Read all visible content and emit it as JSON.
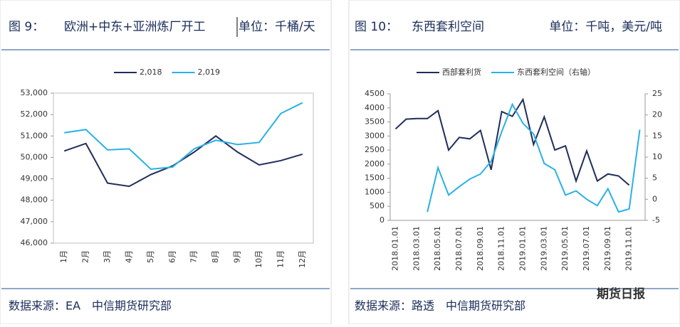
{
  "chart_data": [
    {
      "type": "line",
      "figure": "图 9：",
      "title": "欧洲+中东+亚洲炼厂开工",
      "unit": "单位：千桶/天",
      "source": "数据来源：EA　中信期货研究部",
      "categories": [
        "1月",
        "2月",
        "3月",
        "4月",
        "5月",
        "6月",
        "7月",
        "8月",
        "9月",
        "10月",
        "11月",
        "12月"
      ],
      "series": [
        {
          "name": "2,018",
          "color": "#1f2d5a",
          "values": [
            50300,
            50650,
            48800,
            48650,
            49200,
            49600,
            50250,
            51000,
            50250,
            49650,
            49850,
            50150
          ]
        },
        {
          "name": "2,019",
          "color": "#2ab0e6",
          "values": [
            51150,
            51300,
            50350,
            50400,
            49450,
            49550,
            50400,
            50800,
            50600,
            50700,
            52050,
            52550
          ]
        }
      ],
      "ylim": [
        46000,
        53000
      ],
      "yticks": [
        {
          "value": 46000,
          "label": "46,000"
        },
        {
          "value": 47000,
          "label": "47,000"
        },
        {
          "value": 48000,
          "label": "48,000"
        },
        {
          "value": 49000,
          "label": "49,000"
        },
        {
          "value": 50000,
          "label": "50,000"
        },
        {
          "value": 51000,
          "label": "51,000"
        },
        {
          "value": 52000,
          "label": "52,000"
        },
        {
          "value": 53000,
          "label": "53,000"
        }
      ],
      "legend": "top"
    },
    {
      "type": "line",
      "figure": "图 10：",
      "title": "东西套利空间",
      "unit": "单位：千吨，美元/吨",
      "source": "数据来源：路透　中信期货研究部",
      "categories": [
        "2018.01.01",
        null,
        "2018.03.01",
        null,
        "2018.05.01",
        null,
        "2018.07.01",
        null,
        "2018.09.01",
        null,
        "2018.11.01",
        null,
        "2019.01.01",
        null,
        "2019.03.01",
        null,
        "2019.05.01",
        null,
        "2019.07.01",
        null,
        "2019.09.01",
        null,
        "2019.11.01",
        null
      ],
      "series": [
        {
          "name": "西部套利货",
          "color": "#1f2d5a",
          "values": [
            3250,
            3600,
            3620,
            3620,
            3900,
            2500,
            2950,
            2900,
            3200,
            1800,
            3870,
            3700,
            4300,
            2700,
            3680,
            2500,
            2650,
            1400,
            2470,
            1400,
            1650,
            1580,
            1250,
            null
          ]
        },
        {
          "name": "东西套利空间（右轴）",
          "color": "#2ab0e6",
          "axis": "y2",
          "values": [
            null,
            null,
            null,
            -3,
            7.5,
            1,
            3,
            4.8,
            6,
            9,
            16,
            22.5,
            18,
            15.5,
            8.5,
            7,
            1,
            2,
            0,
            -1.5,
            2.5,
            -3,
            -2.3,
            16.5
          ]
        }
      ],
      "ylim": [
        0,
        4500
      ],
      "yticks": [
        0,
        500,
        1000,
        1500,
        2000,
        2500,
        3000,
        3500,
        4000,
        4500
      ],
      "y2lim": [
        -5,
        25
      ],
      "y2ticks": [
        -5,
        0,
        5,
        10,
        15,
        20,
        25
      ],
      "legend": "top"
    }
  ],
  "watermark": "期货日报"
}
